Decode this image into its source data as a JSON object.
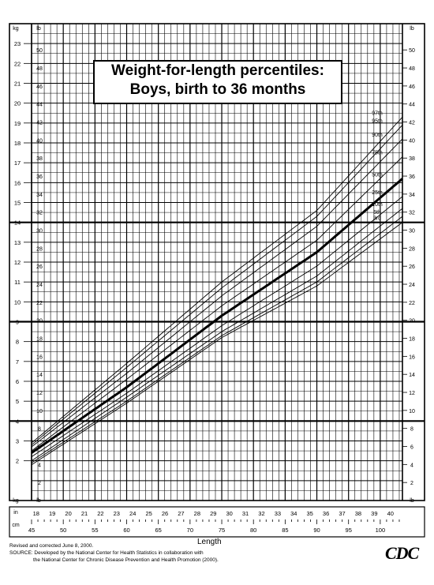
{
  "chart_data": {
    "type": "line",
    "title": "Weight-for-length percentiles:",
    "subtitle": "Boys, birth to 36 months",
    "xlabel": "Length",
    "x_units": {
      "primary": "cm",
      "secondary": "in"
    },
    "y_units": {
      "primary": "kg",
      "secondary": "lb"
    },
    "xlim_cm": [
      45,
      103.5
    ],
    "ylim_kg": [
      0,
      24
    ],
    "x_ticks_cm": [
      45,
      50,
      55,
      60,
      65,
      70,
      75,
      80,
      85,
      90,
      95,
      100
    ],
    "x_ticks_in": [
      18,
      19,
      20,
      21,
      22,
      23,
      24,
      25,
      26,
      27,
      28,
      29,
      30,
      31,
      32,
      33,
      34,
      35,
      36,
      37,
      38,
      39,
      40
    ],
    "y_ticks_kg": [
      2,
      3,
      4,
      5,
      6,
      7,
      8,
      9,
      10,
      11,
      12,
      13,
      14,
      15,
      16,
      17,
      18,
      19,
      20,
      21,
      22,
      23
    ],
    "y_ticks_lb": [
      2,
      4,
      6,
      8,
      10,
      12,
      14,
      16,
      18,
      20,
      22,
      24,
      26,
      28,
      30,
      32,
      34,
      36,
      38,
      40,
      42,
      44,
      46,
      48,
      50
    ],
    "grid": true,
    "x": [
      45,
      60,
      75,
      90,
      103.5
    ],
    "series": [
      {
        "name": "97th",
        "values": [
          2.9,
          6.9,
          11.0,
          14.6,
          19.3
        ]
      },
      {
        "name": "95th",
        "values": [
          2.8,
          6.7,
          10.7,
          14.3,
          18.9
        ]
      },
      {
        "name": "90th",
        "values": [
          2.7,
          6.4,
          10.3,
          13.8,
          18.2
        ]
      },
      {
        "name": "75th",
        "values": [
          2.5,
          6.1,
          9.8,
          13.1,
          17.3
        ]
      },
      {
        "name": "50th",
        "values": [
          2.4,
          5.7,
          9.3,
          12.5,
          16.2
        ]
      },
      {
        "name": "25th",
        "values": [
          2.2,
          5.4,
          8.8,
          11.8,
          15.3
        ]
      },
      {
        "name": "10th",
        "values": [
          2.0,
          5.2,
          8.5,
          11.3,
          14.7
        ]
      },
      {
        "name": "5th",
        "values": [
          1.9,
          5.0,
          8.3,
          11.0,
          14.3
        ]
      },
      {
        "name": "3rd",
        "values": [
          1.8,
          4.9,
          8.2,
          10.8,
          14.0
        ]
      }
    ]
  },
  "footer": {
    "line1": "Revised and corrected June 8, 2000.",
    "line2": "SOURCE: Developed by the National Center for Health Statistics in collaboration with",
    "line3": "the National Center for Chronic Disease Prevention and Health Promotion (2000)."
  },
  "logo_text": "CDC",
  "colors": {
    "line": "#000000",
    "background": "#ffffff"
  }
}
